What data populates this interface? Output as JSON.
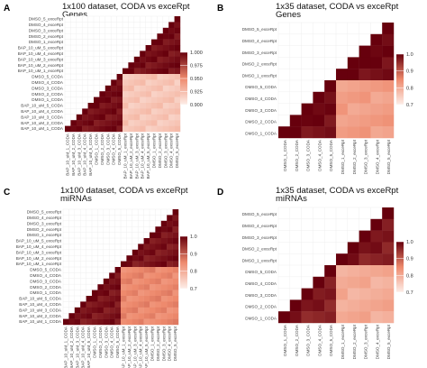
{
  "colors": {
    "low": "#fdeee8",
    "mid": "#ee8a6d",
    "high": "#67000d",
    "grid": "#ebebeb"
  },
  "panels": [
    {
      "letter": "A",
      "title_line1": "1x100 dataset, CODA vs exceRpt",
      "title_line2": "Genes",
      "chart_data": {
        "type": "heatmap",
        "title": "1x100 dataset, CODA vs exceRpt Genes",
        "labels": [
          "DMSO_5_exceRpt",
          "DMSO_4_exceRpt",
          "DMSO_3_exceRpt",
          "DMSO_2_exceRpt",
          "DMSO_1_exceRpt",
          "BAP_10_uM_5_exceRpt",
          "BAP_10_uM_4_exceRpt",
          "BAP_10_uM_3_exceRpt",
          "BAP_10_uM_2_exceRpt",
          "BAP_10_uM_1_exceRpt",
          "DMSO_5_CODA",
          "DMSO_4_CODA",
          "DMSO_3_CODA",
          "DMSO_2_CODA",
          "DMSO_1_CODA",
          "BAP_10_uM_5_CODA",
          "BAP_10_uM_4_CODA",
          "BAP_10_uM_3_CODA",
          "BAP_10_uM_2_CODA",
          "BAP_10_uM_1_CODA"
        ],
        "legend_ticks": [
          1.0,
          0.975,
          0.95,
          0.925,
          0.9
        ],
        "legend_tick_labels": [
          "1.000",
          "0.975",
          "0.950",
          "0.925",
          "0.900"
        ],
        "scale_min": 0.9,
        "scale_max": 1.0,
        "same_pipeline_value": 0.995,
        "cross_pipeline_value": 0.92,
        "diagonal_value": 1.0
      }
    },
    {
      "letter": "B",
      "title_line1": "1x35 dataset, CODA vs exceRpt",
      "title_line2": "Genes",
      "chart_data": {
        "type": "heatmap",
        "title": "1x35 dataset, CODA vs exceRpt Genes",
        "labels": [
          "DMSO_5_exceRpt",
          "DMSO_4_exceRpt",
          "DMSO_3_exceRpt",
          "DMSO_2_exceRpt",
          "DMSO_1_exceRpt",
          "DMSO_5_CODA",
          "DMSO_4_CODA",
          "DMSO_3_CODA",
          "DMSO_2_CODA",
          "DMSO_1_CODA"
        ],
        "legend_ticks": [
          1.0,
          0.9,
          0.8,
          0.7
        ],
        "legend_tick_labels": [
          "1.0",
          "0.9",
          "0.8",
          "0.7"
        ],
        "scale_min": 0.7,
        "scale_max": 1.0,
        "same_pipeline_value": 0.99,
        "cross_pipeline_value": 0.82,
        "diagonal_value": 1.0
      }
    },
    {
      "letter": "C",
      "title_line1": "1x100 dataset, CODA vs exceRpt",
      "title_line2": "miRNAs",
      "chart_data": {
        "type": "heatmap",
        "title": "1x100 dataset, CODA vs exceRpt miRNAs",
        "labels": [
          "DMSO_5_exceRpt",
          "DMSO_4_exceRpt",
          "DMSO_3_exceRpt",
          "DMSO_2_exceRpt",
          "DMSO_1_exceRpt",
          "BAP_10_uM_5_exceRpt",
          "BAP_10_uM_4_exceRpt",
          "BAP_10_uM_3_exceRpt",
          "BAP_10_uM_2_exceRpt",
          "BAP_10_uM_1_exceRpt",
          "DMSO_5_CODA",
          "DMSO_4_CODA",
          "DMSO_3_CODA",
          "DMSO_2_CODA",
          "DMSO_1_CODA",
          "BAP_10_uM_5_CODA",
          "BAP_10_uM_4_CODA",
          "BAP_10_uM_3_CODA",
          "BAP_10_uM_2_CODA",
          "BAP_10_uM_1_CODA"
        ],
        "legend_ticks": [
          1.0,
          0.9,
          0.8,
          0.7
        ],
        "legend_tick_labels": [
          "1.0",
          "0.9",
          "0.8",
          "0.7"
        ],
        "scale_min": 0.7,
        "scale_max": 1.0,
        "same_pipeline_value": 0.98,
        "cross_pipeline_value": 0.85,
        "diagonal_value": 1.0
      }
    },
    {
      "letter": "D",
      "title_line1": "1x35 dataset, CODA vs exceRpt",
      "title_line2": "miRNAs",
      "chart_data": {
        "type": "heatmap",
        "title": "1x35 dataset, CODA vs exceRpt miRNAs",
        "labels": [
          "DMSO_5_exceRpt",
          "DMSO_4_exceRpt",
          "DMSO_3_exceRpt",
          "DMSO_2_exceRpt",
          "DMSO_1_exceRpt",
          "DMSO_5_CODA",
          "DMSO_4_CODA",
          "DMSO_3_CODA",
          "DMSO_2_CODA",
          "DMSO_1_CODA"
        ],
        "legend_ticks": [
          1.0,
          0.9,
          0.8,
          0.7
        ],
        "legend_tick_labels": [
          "1.0",
          "0.9",
          "0.8",
          "0.7"
        ],
        "scale_min": 0.7,
        "scale_max": 1.0,
        "same_pipeline_value": 0.97,
        "cross_pipeline_value": 0.8,
        "diagonal_value": 1.0
      }
    }
  ]
}
